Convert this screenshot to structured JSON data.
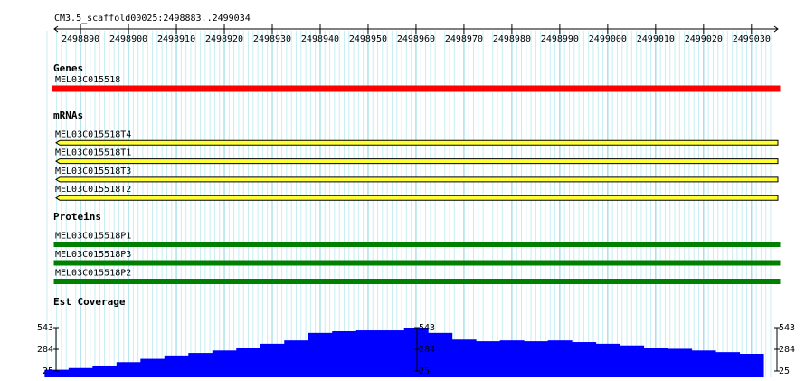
{
  "ruler": {
    "title": "CM3.5_scaffold00025:2498883..2499034",
    "start": 2498883,
    "end": 2499034,
    "ticks": [
      2498890,
      2498900,
      2498910,
      2498920,
      2498930,
      2498940,
      2498950,
      2498960,
      2498970,
      2498980,
      2498990,
      2499000,
      2499010,
      2499020,
      2499030
    ]
  },
  "tracks": [
    {
      "title": "Genes",
      "color": "#ff0000",
      "outline": "#ff0000",
      "height": 6,
      "features": [
        "MEL03C015518"
      ]
    },
    {
      "title": "mRNAs",
      "color": "#ffff33",
      "outline": "#000000",
      "height": 5,
      "features": [
        "MEL03C015518T4",
        "MEL03C015518T1",
        "MEL03C015518T3",
        "MEL03C015518T2"
      ]
    },
    {
      "title": "Proteins",
      "color": "#008000",
      "outline": "#008000",
      "height": 5,
      "features": [
        "MEL03C015518P1",
        "MEL03C015518P3",
        "MEL03C015518P2"
      ]
    }
  ],
  "coverage": {
    "title": "Est Coverage",
    "color": "#0000ff",
    "ylim": [
      25,
      543
    ],
    "yticks": [
      25,
      284,
      543
    ],
    "positions": [
      2498885,
      2498890,
      2498895,
      2498900,
      2498905,
      2498910,
      2498915,
      2498920,
      2498925,
      2498930,
      2498935,
      2498940,
      2498945,
      2498950,
      2498955,
      2498960,
      2498965,
      2498970,
      2498975,
      2498980,
      2498985,
      2498990,
      2498995,
      2499000,
      2499005,
      2499010,
      2499015,
      2499020,
      2499025,
      2499030
    ],
    "values": [
      40,
      60,
      90,
      130,
      170,
      210,
      240,
      270,
      300,
      350,
      390,
      480,
      500,
      510,
      510,
      543,
      480,
      400,
      380,
      390,
      380,
      390,
      370,
      350,
      330,
      300,
      290,
      270,
      250,
      230
    ]
  }
}
